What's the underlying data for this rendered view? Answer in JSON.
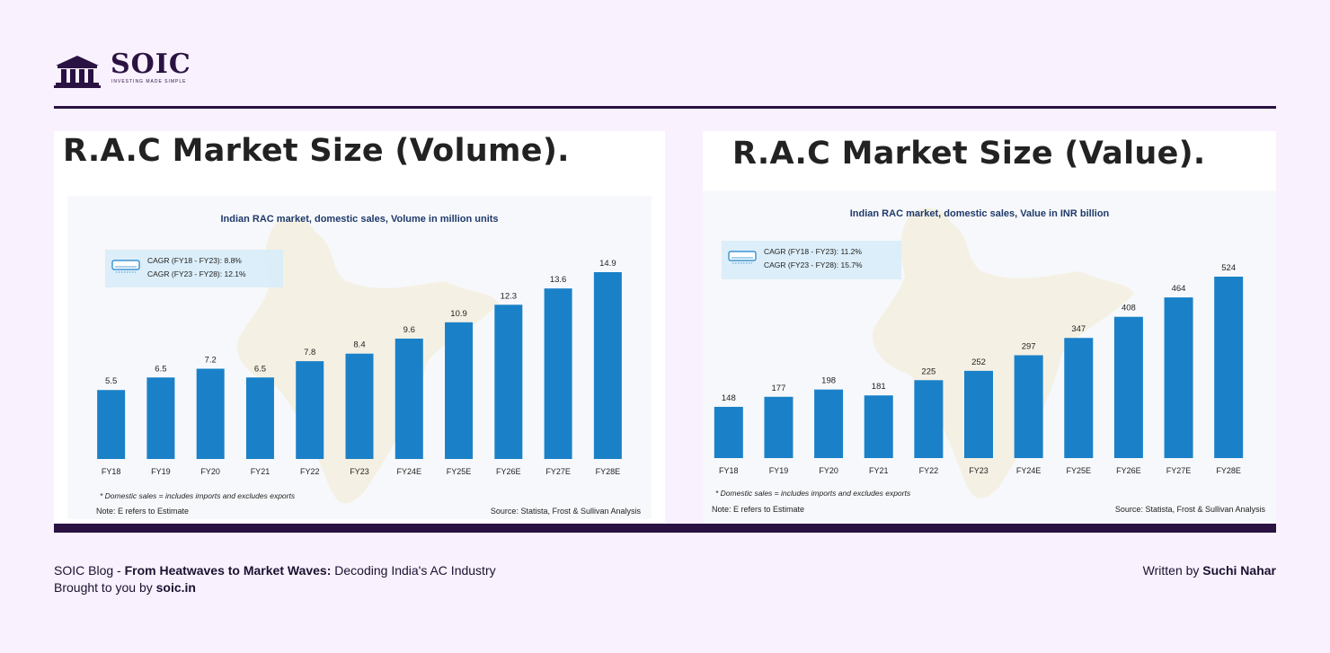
{
  "brand": {
    "name": "SOIC",
    "tagline": "INVESTING MADE SIMPLE",
    "logo_text": "SOIC",
    "logo_icon": "bank-building-icon"
  },
  "colors": {
    "bar": "#1a81c8",
    "accent": "#2a1242",
    "background": "#f9f1fd"
  },
  "panels": [
    {
      "heading": "R.A.C Market Size (Volume).",
      "note_domestic": "* Domestic sales = includes imports and excludes exports",
      "note_estimate": "Note: E refers to Estimate",
      "source": "Source: Statista, Frost & Sullivan Analysis",
      "cagr": [
        "CAGR (FY18 - FY23): 8.8%",
        "CAGR (FY23 - FY28): 12.1%"
      ]
    },
    {
      "heading": "R.A.C Market Size (Value).",
      "note_domestic": "* Domestic sales = includes imports and excludes exports",
      "note_estimate": "Note: E refers to Estimate",
      "source": "Source: Statista, Frost & Sullivan Analysis",
      "cagr": [
        "CAGR (FY18 - FY23): 11.2%",
        "CAGR (FY23 - FY28): 15.7%"
      ]
    }
  ],
  "chart_data": [
    {
      "type": "bar",
      "title": "Indian RAC market, domestic sales, Volume in million units",
      "categories": [
        "FY18",
        "FY19",
        "FY20",
        "FY21",
        "FY22",
        "FY23",
        "FY24E",
        "FY25E",
        "FY26E",
        "FY27E",
        "FY28E"
      ],
      "values": [
        5.5,
        6.5,
        7.2,
        6.5,
        7.8,
        8.4,
        9.6,
        10.9,
        12.3,
        13.6,
        14.9
      ],
      "labels": [
        "5.5",
        "6.5",
        "7.2",
        "6.5",
        "7.8",
        "8.4",
        "9.6",
        "10.9",
        "12.3",
        "13.6",
        "14.9"
      ],
      "ylim": [
        0,
        14.9
      ],
      "xlabel": "",
      "ylabel": "",
      "grid": false
    },
    {
      "type": "bar",
      "title": "Indian RAC market, domestic sales, Value in INR billion",
      "categories": [
        "FY18",
        "FY19",
        "FY20",
        "FY21",
        "FY22",
        "FY23",
        "FY24E",
        "FY25E",
        "FY26E",
        "FY27E",
        "FY28E"
      ],
      "values": [
        148,
        177,
        198,
        181,
        225,
        252,
        297,
        347,
        408,
        464,
        524
      ],
      "labels": [
        "148",
        "177",
        "198",
        "181",
        "225",
        "252",
        "297",
        "347",
        "408",
        "464",
        "524"
      ],
      "ylim": [
        0,
        524
      ],
      "xlabel": "",
      "ylabel": "",
      "grid": false
    }
  ],
  "footer": {
    "blog_prefix": "SOIC Blog - ",
    "blog_title_bold": "From Heatwaves to Market Waves:",
    "blog_title_rest": " Decoding India's AC Industry",
    "brought_prefix": "Brought to you by ",
    "brought_site": "soic.in",
    "written_prefix": "Written by ",
    "author": "Suchi Nahar"
  }
}
